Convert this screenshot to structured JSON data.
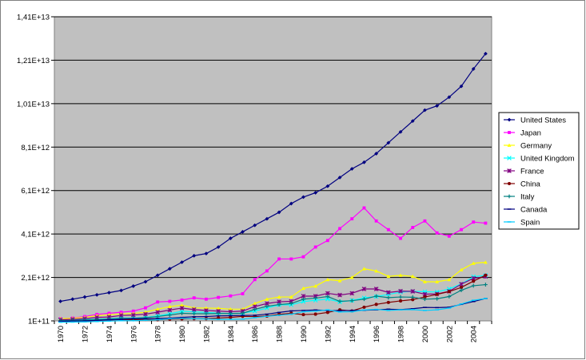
{
  "chart_data": {
    "type": "line",
    "title": "",
    "xlabel": "",
    "ylabel": "",
    "x": [
      1970,
      1971,
      1972,
      1973,
      1974,
      1975,
      1976,
      1977,
      1978,
      1979,
      1980,
      1981,
      1982,
      1983,
      1984,
      1985,
      1986,
      1987,
      1988,
      1989,
      1990,
      1991,
      1992,
      1993,
      1994,
      1995,
      1996,
      1997,
      1998,
      1999,
      2000,
      2001,
      2002,
      2003,
      2004,
      2005
    ],
    "x_tick_labels": [
      "1970",
      "1972",
      "1974",
      "1976",
      "1978",
      "1980",
      "1982",
      "1984",
      "1986",
      "1988",
      "1990",
      "1992",
      "1994",
      "1996",
      "1998",
      "2000",
      "2002",
      "2004"
    ],
    "ylim": [
      100000000000.0,
      14100000000000.0
    ],
    "y_tick_values": [
      100000000000.0,
      2100000000000.0,
      4100000000000.0,
      6100000000000.0,
      8100000000000.0,
      10100000000000.0,
      12100000000000.0,
      14100000000000.0
    ],
    "y_tick_labels": [
      "1E+11",
      "2,1E+12",
      "4,1E+12",
      "6,1E+12",
      "8,1E+12",
      "1,01E+13",
      "1,21E+13",
      "1,41E+13"
    ],
    "grid": "horizontal",
    "background_color": "#c0c0c0",
    "legend_position": "right",
    "series": [
      {
        "name": "United States",
        "color": "#000080",
        "marker": "diamond",
        "values": [
          1000000000000.0,
          1100000000000.0,
          1200000000000.0,
          1300000000000.0,
          1400000000000.0,
          1500000000000.0,
          1700000000000.0,
          1900000000000.0,
          2200000000000.0,
          2500000000000.0,
          2800000000000.0,
          3100000000000.0,
          3200000000000.0,
          3500000000000.0,
          3900000000000.0,
          4200000000000.0,
          4500000000000.0,
          4800000000000.0,
          5100000000000.0,
          5500000000000.0,
          5800000000000.0,
          6000000000000.0,
          6300000000000.0,
          6700000000000.0,
          7100000000000.0,
          7400000000000.0,
          7800000000000.0,
          8300000000000.0,
          8800000000000.0,
          9300000000000.0,
          9800000000000.0,
          10000000000000.0,
          10400000000000.0,
          10900000000000.0,
          11700000000000.0,
          12400000000000.0
        ]
      },
      {
        "name": "Japan",
        "color": "#ff00ff",
        "marker": "square",
        "values": [
          200000000000.0,
          230000000000.0,
          300000000000.0,
          400000000000.0,
          450000000000.0,
          500000000000.0,
          550000000000.0,
          700000000000.0,
          970000000000.0,
          1000000000000.0,
          1060000000000.0,
          1160000000000.0,
          1100000000000.0,
          1180000000000.0,
          1250000000000.0,
          1350000000000.0,
          2000000000000.0,
          2400000000000.0,
          2950000000000.0,
          2950000000000.0,
          3050000000000.0,
          3500000000000.0,
          3800000000000.0,
          4350000000000.0,
          4800000000000.0,
          5300000000000.0,
          4700000000000.0,
          4300000000000.0,
          3900000000000.0,
          4400000000000.0,
          4700000000000.0,
          4150000000000.0,
          4000000000000.0,
          4300000000000.0,
          4650000000000.0,
          4600000000000.0
        ]
      },
      {
        "name": "Germany",
        "color": "#ffff00",
        "marker": "triangle",
        "values": [
          200000000000.0,
          220000000000.0,
          260000000000.0,
          340000000000.0,
          380000000000.0,
          420000000000.0,
          440000000000.0,
          500000000000.0,
          640000000000.0,
          760000000000.0,
          820000000000.0,
          700000000000.0,
          690000000000.0,
          680000000000.0,
          640000000000.0,
          640000000000.0,
          900000000000.0,
          1100000000000.0,
          1200000000000.0,
          1200000000000.0,
          1600000000000.0,
          1700000000000.0,
          2000000000000.0,
          1950000000000.0,
          2100000000000.0,
          2500000000000.0,
          2400000000000.0,
          2150000000000.0,
          2200000000000.0,
          2150000000000.0,
          1900000000000.0,
          1900000000000.0,
          2000000000000.0,
          2450000000000.0,
          2750000000000.0,
          2800000000000.0
        ]
      },
      {
        "name": "United Kingdom",
        "color": "#00ffff",
        "marker": "x",
        "values": [
          130000000000.0,
          140000000000.0,
          160000000000.0,
          180000000000.0,
          200000000000.0,
          240000000000.0,
          230000000000.0,
          260000000000.0,
          330000000000.0,
          430000000000.0,
          540000000000.0,
          520000000000.0,
          490000000000.0,
          460000000000.0,
          440000000000.0,
          460000000000.0,
          550000000000.0,
          690000000000.0,
          840000000000.0,
          840000000000.0,
          990000000000.0,
          1050000000000.0,
          1100000000000.0,
          970000000000.0,
          1040000000000.0,
          1160000000000.0,
          1220000000000.0,
          1320000000000.0,
          1420000000000.0,
          1460000000000.0,
          1440000000000.0,
          1430000000000.0,
          1570000000000.0,
          1800000000000.0,
          2130000000000.0,
          2200000000000.0
        ]
      },
      {
        "name": "France",
        "color": "#800080",
        "marker": "star",
        "values": [
          150000000000.0,
          170000000000.0,
          200000000000.0,
          260000000000.0,
          280000000000.0,
          350000000000.0,
          370000000000.0,
          410000000000.0,
          500000000000.0,
          600000000000.0,
          690000000000.0,
          620000000000.0,
          580000000000.0,
          550000000000.0,
          520000000000.0,
          550000000000.0,
          760000000000.0,
          900000000000.0,
          980000000000.0,
          1000000000000.0,
          1240000000000.0,
          1240000000000.0,
          1370000000000.0,
          1290000000000.0,
          1370000000000.0,
          1570000000000.0,
          1570000000000.0,
          1410000000000.0,
          1470000000000.0,
          1460000000000.0,
          1330000000000.0,
          1340000000000.0,
          1460000000000.0,
          1790000000000.0,
          2060000000000.0,
          2140000000000.0
        ]
      },
      {
        "name": "China",
        "color": "#800000",
        "marker": "circle",
        "values": [
          90000000000.0,
          100000000000.0,
          110000000000.0,
          140000000000.0,
          140000000000.0,
          160000000000.0,
          150000000000.0,
          170000000000.0,
          150000000000.0,
          180000000000.0,
          190000000000.0,
          200000000000.0,
          200000000000.0,
          230000000000.0,
          260000000000.0,
          310000000000.0,
          300000000000.0,
          320000000000.0,
          400000000000.0,
          450000000000.0,
          390000000000.0,
          410000000000.0,
          490000000000.0,
          610000000000.0,
          560000000000.0,
          730000000000.0,
          860000000000.0,
          950000000000.0,
          1020000000000.0,
          1080000000000.0,
          1200000000000.0,
          1320000000000.0,
          1450000000000.0,
          1640000000000.0,
          1930000000000.0,
          2200000000000.0
        ]
      },
      {
        "name": "Italy",
        "color": "#008080",
        "marker": "plus",
        "values": [
          110000000000.0,
          120000000000.0,
          140000000000.0,
          160000000000.0,
          190000000000.0,
          220000000000.0,
          220000000000.0,
          250000000000.0,
          300000000000.0,
          370000000000.0,
          450000000000.0,
          430000000000.0,
          430000000000.0,
          440000000000.0,
          440000000000.0,
          450000000000.0,
          630000000000.0,
          770000000000.0,
          850000000000.0,
          900000000000.0,
          1100000000000.0,
          1150000000000.0,
          1220000000000.0,
          1000000000000.0,
          1030000000000.0,
          1100000000000.0,
          1240000000000.0,
          1170000000000.0,
          1200000000000.0,
          1190000000000.0,
          1100000000000.0,
          1120000000000.0,
          1220000000000.0,
          1510000000000.0,
          1720000000000.0,
          1770000000000.0
        ]
      },
      {
        "name": "Canada",
        "color": "#000080",
        "marker": "dash",
        "values": [
          80000000000.0,
          90000000000.0,
          100000000000.0,
          120000000000.0,
          150000000000.0,
          170000000000.0,
          200000000000.0,
          200000000000.0,
          210000000000.0,
          230000000000.0,
          260000000000.0,
          290000000000.0,
          300000000000.0,
          330000000000.0,
          340000000000.0,
          350000000000.0,
          360000000000.0,
          410000000000.0,
          490000000000.0,
          560000000000.0,
          580000000000.0,
          600000000000.0,
          580000000000.0,
          570000000000.0,
          580000000000.0,
          590000000000.0,
          610000000000.0,
          640000000000.0,
          620000000000.0,
          660000000000.0,
          720000000000.0,
          710000000000.0,
          730000000000.0,
          860000000000.0,
          990000000000.0,
          1130000000000.0
        ]
      },
      {
        "name": "Spain",
        "color": "#00ccff",
        "marker": "dash",
        "values": [
          40000000000.0,
          45000000000.0,
          55000000000.0,
          70000000000.0,
          90000000000.0,
          110000000000.0,
          110000000000.0,
          130000000000.0,
          150000000000.0,
          200000000000.0,
          220000000000.0,
          200000000000.0,
          190000000000.0,
          170000000000.0,
          170000000000.0,
          180000000000.0,
          250000000000.0,
          310000000000.0,
          360000000000.0,
          410000000000.0,
          520000000000.0,
          550000000000.0,
          610000000000.0,
          510000000000.0,
          520000000000.0,
          600000000000.0,
          630000000000.0,
          580000000000.0,
          610000000000.0,
          620000000000.0,
          580000000000.0,
          610000000000.0,
          690000000000.0,
          880000000000.0,
          1050000000000.0,
          1130000000000.0
        ]
      }
    ]
  }
}
